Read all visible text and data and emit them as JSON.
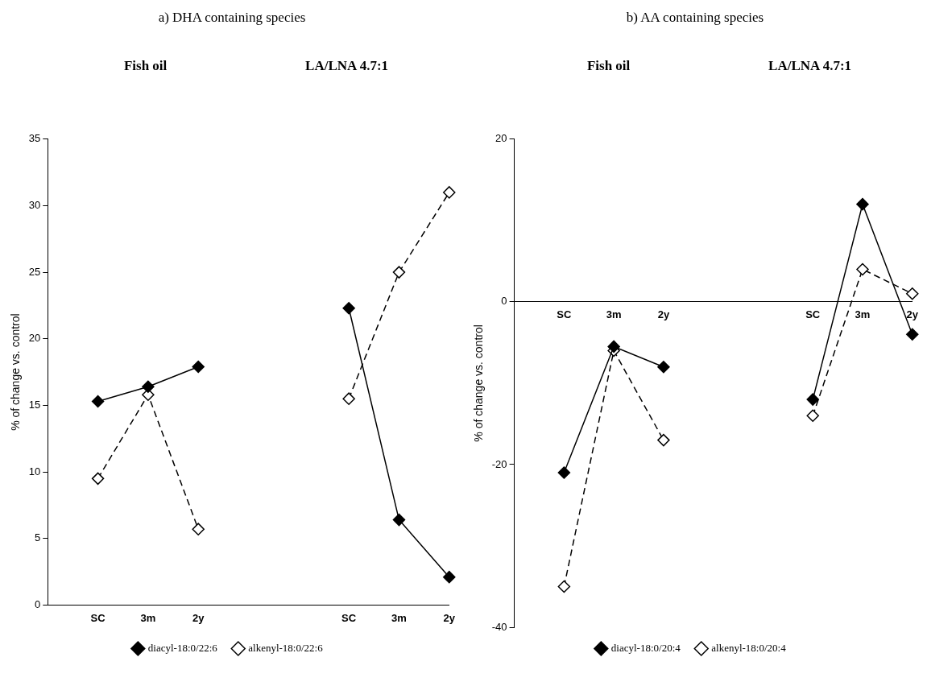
{
  "chart_data": [
    {
      "type": "line",
      "title": "a) DHA containing species",
      "annotations": [
        "Fish oil",
        "LA/LNA 4.7:1"
      ],
      "ylabel": "% of change vs. control",
      "categories": [
        null,
        "SC",
        "3m",
        "2y",
        null,
        null,
        "SC",
        "3m",
        "2y"
      ],
      "series": [
        {
          "name": "diacyl-18:0/22:6",
          "color": "#000000",
          "line_style": "solid",
          "values": [
            null,
            15.3,
            16.4,
            17.9,
            null,
            null,
            22.3,
            6.4,
            2.1
          ]
        },
        {
          "name": "alkenyl-18:0/22:6",
          "color": "#000000",
          "line_style": "dashed",
          "values": [
            null,
            9.5,
            15.8,
            5.7,
            null,
            null,
            15.5,
            25,
            31
          ]
        }
      ],
      "ylim": [
        0,
        35
      ],
      "yticks": [
        0,
        5,
        10,
        15,
        20,
        25,
        30,
        35
      ],
      "grid": false,
      "legend": "bottom",
      "marker": "diamond"
    },
    {
      "type": "line",
      "title": "b) AA containing species",
      "annotations": [
        "Fish oil",
        "LA/LNA 4.7:1"
      ],
      "ylabel": "% of change vs. control",
      "categories": [
        null,
        "SC",
        "3m",
        "2y",
        null,
        null,
        "SC",
        "3m",
        "2y"
      ],
      "series": [
        {
          "name": "diacyl-18:0/20:4",
          "color": "#000000",
          "line_style": "solid",
          "values": [
            null,
            -21,
            -5.5,
            -8,
            null,
            null,
            -12,
            12,
            -4
          ]
        },
        {
          "name": "alkenyl-18:0/20:4",
          "color": "#000000",
          "line_style": "dashed",
          "values": [
            null,
            -35,
            -6,
            -17,
            null,
            null,
            -14,
            4,
            1
          ]
        }
      ],
      "ylim": [
        -40,
        20
      ],
      "yticks": [
        -40,
        -20,
        0,
        20
      ],
      "grid": false,
      "legend": "bottom",
      "marker": "diamond"
    }
  ]
}
